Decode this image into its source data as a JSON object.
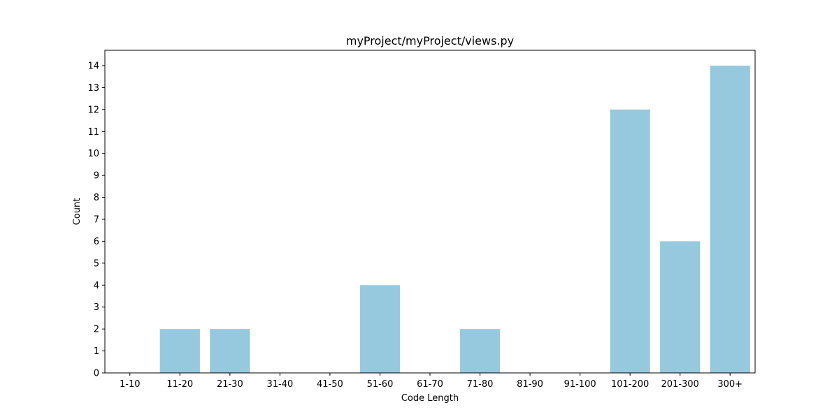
{
  "chart_data": {
    "type": "bar",
    "title": "myProject/myProject/views.py",
    "xlabel": "Code Length",
    "ylabel": "Count",
    "categories": [
      "1-10",
      "11-20",
      "21-30",
      "31-40",
      "41-50",
      "51-60",
      "61-70",
      "71-80",
      "81-90",
      "91-100",
      "101-200",
      "201-300",
      "300+"
    ],
    "values": [
      0,
      2,
      2,
      0,
      0,
      4,
      0,
      2,
      0,
      0,
      12,
      6,
      14
    ],
    "ylim": [
      0,
      14.7
    ],
    "yticks": [
      0,
      1,
      2,
      3,
      4,
      5,
      6,
      7,
      8,
      9,
      10,
      11,
      12,
      13,
      14
    ],
    "bar_color": "#96c9de",
    "grid": false,
    "legend": "none"
  }
}
